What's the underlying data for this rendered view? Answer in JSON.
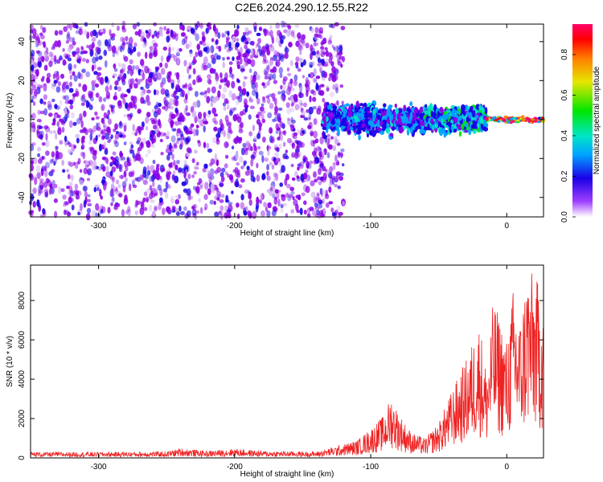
{
  "title": "C2E6.2024.290.12.55.R22",
  "chart_data": [
    {
      "type": "heatmap",
      "xlabel": "Height of straight line (km)",
      "ylabel": "Frequency (Hz)",
      "xlim": [
        -350,
        27
      ],
      "ylim": [
        -50,
        49
      ],
      "xticks": [
        -300,
        -200,
        -100,
        0
      ],
      "yticks": [
        -40,
        -20,
        0,
        20,
        40
      ],
      "colorbar": {
        "label": "Normalized spectral amplitude",
        "range": [
          0,
          0.95
        ],
        "ticks": [
          0.0,
          0.2,
          0.4,
          0.6,
          0.8
        ],
        "colormap": [
          "#d0b0f0",
          "#8a00e6",
          "#1a00e6",
          "#00a0ff",
          "#00e6c8",
          "#00e600",
          "#e6e600",
          "#ff8000",
          "#ff0000",
          "#ff0066"
        ]
      },
      "description_regions": [
        {
          "x": [
            -350,
            -120
          ],
          "freq_spread": [
            -50,
            49
          ],
          "amplitude": 0.1
        },
        {
          "x": [
            -135,
            -60
          ],
          "freq_spread": [
            -10,
            10
          ],
          "amplitude": 0.3
        },
        {
          "x": [
            -60,
            -15
          ],
          "freq_spread": [
            -8,
            8
          ],
          "amplitude": 0.4
        },
        {
          "x": [
            -15,
            27
          ],
          "freq_spread": [
            -2,
            2
          ],
          "amplitude": 0.85
        }
      ]
    },
    {
      "type": "line",
      "xlabel": "Height of straight line (km)",
      "ylabel": "SNR (10 * v/v)",
      "xlim": [
        -350,
        27
      ],
      "ylim": [
        0,
        9800
      ],
      "xticks": [
        -300,
        -200,
        -100,
        0
      ],
      "yticks": [
        0,
        2000,
        4000,
        6000,
        8000
      ],
      "color": "#ee2222",
      "envelope": {
        "x": [
          -350,
          -300,
          -250,
          -240,
          -220,
          -200,
          -180,
          -140,
          -125,
          -110,
          -100,
          -90,
          -85,
          -80,
          -75,
          -70,
          -60,
          -50,
          -40,
          -30,
          -20,
          -15,
          -10,
          -5,
          0,
          5,
          10,
          15,
          20,
          27
        ],
        "y": [
          300,
          300,
          320,
          500,
          350,
          480,
          350,
          320,
          600,
          900,
          1500,
          2200,
          3200,
          2400,
          1800,
          1300,
          1000,
          1800,
          3500,
          5000,
          7000,
          4500,
          8000,
          7200,
          6000,
          8800,
          7000,
          9800,
          9300,
          8600
        ]
      }
    }
  ]
}
